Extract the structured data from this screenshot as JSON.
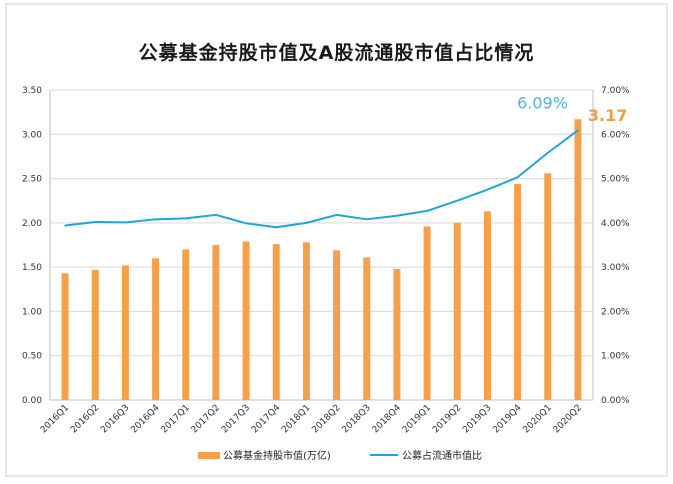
{
  "chart_data": {
    "type": "bar+line",
    "title": "公募基金持股市值及A股流通股市值占比情况",
    "categories": [
      "2016Q1",
      "2016Q2",
      "2016Q3",
      "2016Q4",
      "2017Q1",
      "2017Q2",
      "2017Q3",
      "2017Q4",
      "2018Q1",
      "2018Q2",
      "2018Q3",
      "2018Q4",
      "2019Q1",
      "2019Q2",
      "2019Q3",
      "2019Q4",
      "2020Q1",
      "2020Q2"
    ],
    "series": [
      {
        "name": "公募基金持股市值(万亿)",
        "type": "bar",
        "axis": "left",
        "color": "#f7a04b",
        "values": [
          1.43,
          1.47,
          1.52,
          1.6,
          1.7,
          1.75,
          1.79,
          1.76,
          1.78,
          1.69,
          1.61,
          1.48,
          1.96,
          2.0,
          2.13,
          2.44,
          2.56,
          3.17
        ]
      },
      {
        "name": "公募占流通市值比",
        "type": "line",
        "axis": "right",
        "color": "#1fa4dc",
        "values": [
          3.94,
          4.02,
          4.01,
          4.08,
          4.1,
          4.18,
          3.99,
          3.9,
          4.0,
          4.18,
          4.08,
          4.16,
          4.27,
          4.5,
          4.75,
          5.03,
          5.58,
          6.09
        ]
      }
    ],
    "left_axis": {
      "min": 0,
      "max": 3.5,
      "ticks": [
        "0.00",
        "0.50",
        "1.00",
        "1.50",
        "2.00",
        "2.50",
        "3.00",
        "3.50"
      ]
    },
    "right_axis": {
      "min": 0,
      "max": 7,
      "ticks": [
        "0.00%",
        "1.00%",
        "2.00%",
        "3.00%",
        "4.00%",
        "5.00%",
        "6.00%",
        "7.00%"
      ]
    },
    "annotations": {
      "line_last": "6.09%",
      "bar_last": "3.17"
    },
    "grid": true,
    "legend_position": "bottom"
  }
}
